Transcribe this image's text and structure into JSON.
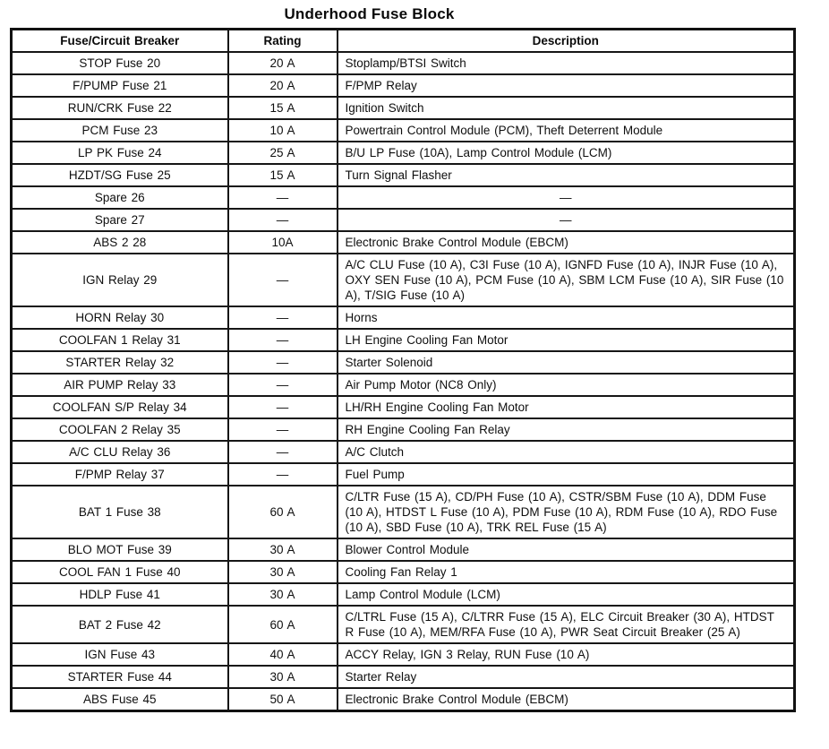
{
  "title": "Underhood Fuse Block",
  "colors": {
    "background": "#ffffff",
    "text": "#0f0f0f",
    "border": "#161616"
  },
  "table": {
    "headers": [
      "Fuse/Circuit Breaker",
      "Rating",
      "Description"
    ],
    "rows": [
      {
        "fuse": "STOP Fuse 20",
        "rating": "20 A",
        "description": "Stoplamp/BTSI Switch"
      },
      {
        "fuse": "F/PUMP Fuse 21",
        "rating": "20 A",
        "description": "F/PMP Relay"
      },
      {
        "fuse": "RUN/CRK Fuse 22",
        "rating": "15 A",
        "description": "Ignition Switch"
      },
      {
        "fuse": "PCM Fuse 23",
        "rating": "10 A",
        "description": "Powertrain Control Module (PCM), Theft Deterrent Module"
      },
      {
        "fuse": "LP PK Fuse 24",
        "rating": "25 A",
        "description": "B/U LP Fuse (10A), Lamp Control Module (LCM)"
      },
      {
        "fuse": "HZDT/SG Fuse 25",
        "rating": "15 A",
        "description": "Turn Signal Flasher"
      },
      {
        "fuse": "Spare 26",
        "rating": "—",
        "description": "—",
        "desc_align": "center"
      },
      {
        "fuse": "Spare 27",
        "rating": "—",
        "description": "—",
        "desc_align": "center"
      },
      {
        "fuse": "ABS 2 28",
        "rating": "10A",
        "description": "Electronic Brake Control Module (EBCM)"
      },
      {
        "fuse": "IGN Relay 29",
        "rating": "—",
        "description": "A/C CLU Fuse (10 A), C3I Fuse (10 A), IGNFD Fuse (10 A), INJR Fuse (10 A), OXY SEN Fuse (10 A), PCM Fuse (10 A), SBM LCM Fuse (10 A), SIR Fuse (10 A), T/SIG Fuse (10 A)"
      },
      {
        "fuse": "HORN Relay 30",
        "rating": "—",
        "description": "Horns"
      },
      {
        "fuse": "COOLFAN 1 Relay 31",
        "rating": "—",
        "description": "LH Engine Cooling Fan Motor"
      },
      {
        "fuse": "STARTER Relay 32",
        "rating": "—",
        "description": "Starter Solenoid"
      },
      {
        "fuse": "AIR PUMP Relay 33",
        "rating": "—",
        "description": "Air Pump Motor (NC8 Only)"
      },
      {
        "fuse": "COOLFAN S/P Relay 34",
        "rating": "—",
        "description": "LH/RH Engine Cooling Fan Motor"
      },
      {
        "fuse": "COOLFAN 2 Relay 35",
        "rating": "—",
        "description": "RH Engine Cooling Fan Relay"
      },
      {
        "fuse": "A/C CLU Relay 36",
        "rating": "—",
        "description": "A/C Clutch"
      },
      {
        "fuse": "F/PMP Relay 37",
        "rating": "—",
        "description": "Fuel Pump"
      },
      {
        "fuse": "BAT 1 Fuse 38",
        "rating": "60 A",
        "description": "C/LTR Fuse (15 A), CD/PH Fuse (10 A), CSTR/SBM Fuse (10 A), DDM Fuse (10 A), HTDST L Fuse (10 A), PDM Fuse (10 A), RDM Fuse (10 A), RDO Fuse (10 A), SBD Fuse (10 A), TRK REL Fuse (15 A)"
      },
      {
        "fuse": "BLO MOT Fuse 39",
        "rating": "30 A",
        "description": "Blower Control Module"
      },
      {
        "fuse": "COOL FAN 1 Fuse 40",
        "rating": "30 A",
        "description": "Cooling Fan Relay 1"
      },
      {
        "fuse": "HDLP Fuse 41",
        "rating": "30 A",
        "description": "Lamp Control Module (LCM)"
      },
      {
        "fuse": "BAT 2 Fuse 42",
        "rating": "60 A",
        "description": "C/LTRL Fuse (15 A), C/LTRR Fuse (15 A), ELC Circuit Breaker (30 A), HTDST R Fuse (10 A), MEM/RFA Fuse (10 A), PWR Seat Circuit Breaker (25 A)"
      },
      {
        "fuse": "IGN Fuse 43",
        "rating": "40 A",
        "description": "ACCY Relay, IGN 3 Relay, RUN Fuse (10 A)"
      },
      {
        "fuse": "STARTER Fuse 44",
        "rating": "30 A",
        "description": "Starter Relay"
      },
      {
        "fuse": "ABS Fuse 45",
        "rating": "50 A",
        "description": "Electronic Brake Control Module (EBCM)"
      }
    ]
  }
}
